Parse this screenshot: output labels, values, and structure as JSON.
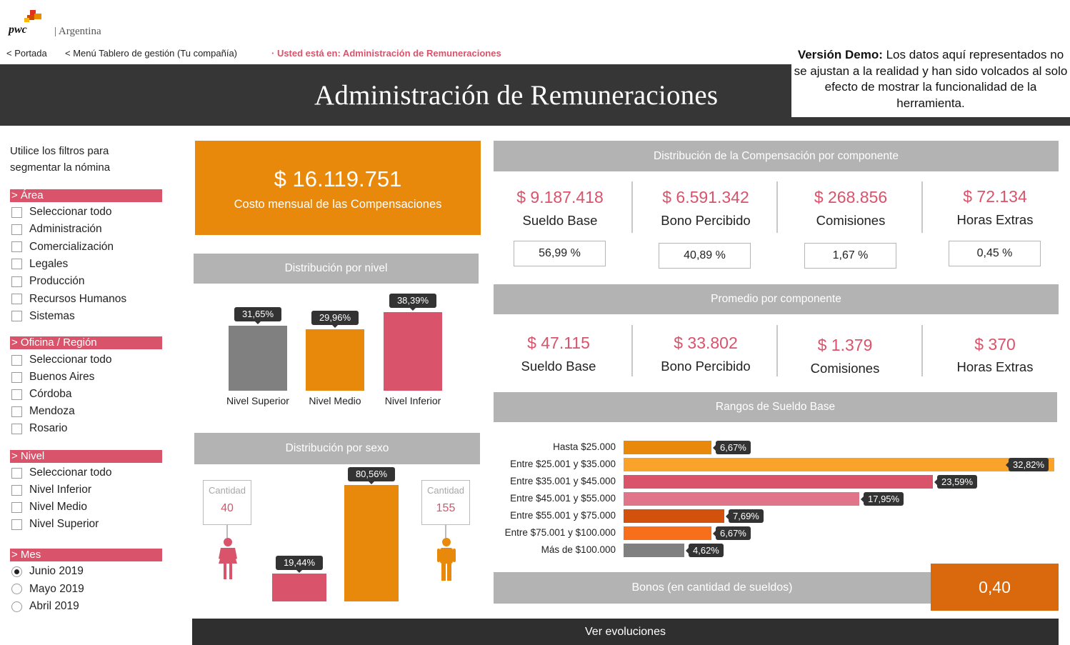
{
  "header": {
    "logo_text": "pwc",
    "country": "| Argentina",
    "nav": {
      "home": "< Portada",
      "menu": "< Menú Tablero de gestión (Tu compañía)",
      "location": "· Usted está en: Administración de Remuneraciones"
    },
    "page_title": "Administración de Remuneraciones",
    "demo_bold": "Versión Demo:",
    "demo_text": " Los datos aquí representados no se ajustan a la realidad y han sido volcados al solo efecto de mostrar la funcionalidad de la herramienta."
  },
  "filters": {
    "intro": "Utilice los filtros para segmentar la nómina",
    "area": {
      "title": "> Área",
      "items": [
        "Seleccionar todo",
        "Administración",
        "Comercialización",
        "Legales",
        "Producción",
        "Recursos Humanos",
        "Sistemas"
      ]
    },
    "oficina": {
      "title": "> Oficina / Región",
      "items": [
        "Seleccionar todo",
        "Buenos Aires",
        "Córdoba",
        "Mendoza",
        "Rosario"
      ]
    },
    "nivel": {
      "title": "> Nivel",
      "items": [
        "Seleccionar todo",
        "Nivel Inferior",
        "Nivel Medio",
        "Nivel Superior"
      ]
    },
    "mes": {
      "title": "> Mes",
      "items": [
        "Junio 2019",
        "Mayo 2019",
        "Abril 2019"
      ],
      "selected": "Junio 2019"
    }
  },
  "kpi": {
    "value": "$ 16.119.751",
    "label": "Costo mensual de las Compensaciones"
  },
  "distribucion_componente": {
    "title": "Distribución de la Compensación por componente",
    "items": [
      {
        "value": "$ 9.187.418",
        "label": "Sueldo Base",
        "pct": "56,99 %"
      },
      {
        "value": "$ 6.591.342",
        "label": "Bono Percibido",
        "pct": "40,89 %"
      },
      {
        "value": "$ 268.856",
        "label": "Comisiones",
        "pct": "1,67 %"
      },
      {
        "value": "$ 72.134",
        "label": "Horas Extras",
        "pct": "0,45 %"
      }
    ]
  },
  "promedio_componente": {
    "title": "Promedio por componente",
    "items": [
      {
        "value": "$ 47.115",
        "label": "Sueldo Base"
      },
      {
        "value": "$ 33.802",
        "label": "Bono Percibido"
      },
      {
        "value": "$ 1.379",
        "label": "Comisiones"
      },
      {
        "value": "$ 370",
        "label": "Horas Extras"
      }
    ]
  },
  "colors": {
    "accent_pink": "#d9536b",
    "orange": "#e8890c",
    "dark_orange": "#d9690c",
    "gray": "#808080",
    "header_dark": "#363636"
  },
  "chart_data": [
    {
      "type": "bar",
      "title": "Distribución por nivel",
      "categories": [
        "Nivel Superior",
        "Nivel Medio",
        "Nivel Inferior"
      ],
      "values": [
        31.65,
        29.96,
        38.39
      ],
      "labels": [
        "31,65%",
        "29,96%",
        "38,39%"
      ],
      "colors": [
        "#808080",
        "#e8890c",
        "#d9536b"
      ]
    },
    {
      "type": "bar",
      "title": "Distribución por sexo",
      "categories": [
        "Mujeres",
        "Hombres"
      ],
      "values": [
        19.44,
        80.56
      ],
      "labels": [
        "19,44%",
        "80,56%"
      ],
      "counts": [
        40,
        155
      ],
      "count_label": "Cantidad",
      "colors": [
        "#d9536b",
        "#e8890c"
      ]
    },
    {
      "type": "bar",
      "orientation": "horizontal",
      "title": "Rangos de Sueldo Base",
      "categories": [
        "Hasta $25.000",
        "Entre $25.001 y $35.000",
        "Entre $35.001 y $45.000",
        "Entre $45.001 y $55.000",
        "Entre $55.001 y $75.000",
        "Entre $75.001 y $100.000",
        "Más de $100.000"
      ],
      "values": [
        6.67,
        32.82,
        23.59,
        17.95,
        7.69,
        6.67,
        4.62
      ],
      "labels": [
        "6,67%",
        "32,82%",
        "23,59%",
        "17,95%",
        "7,69%",
        "6,67%",
        "4,62%"
      ],
      "colors": [
        "#e8890c",
        "#f9a32a",
        "#d9536b",
        "#e07488",
        "#d2520c",
        "#f76f1a",
        "#808080"
      ]
    }
  ],
  "bonos": {
    "label": "Bonos (en cantidad de sueldos)",
    "value": "0,40"
  },
  "footer": {
    "button": "Ver evoluciones"
  }
}
